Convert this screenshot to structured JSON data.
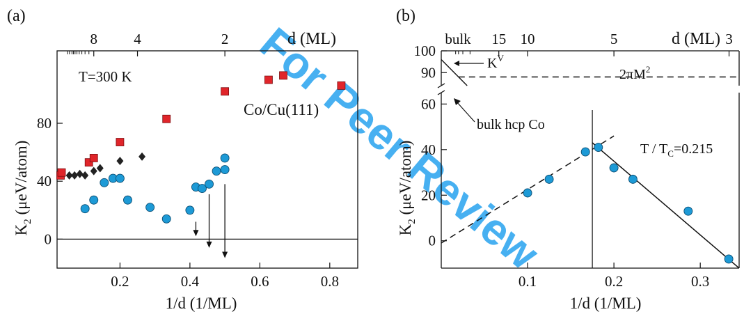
{
  "watermark": "For Peer Review",
  "chart_data": [
    {
      "type": "scatter",
      "panel_label": "(a)",
      "xlabel": "1/d (1/ML)",
      "ylabel": "K",
      "ylabel_sub": "2",
      "ylabel_unit": " (μeV/atom)",
      "xlim": [
        0.02,
        0.88
      ],
      "ylim": [
        -20,
        130
      ],
      "x_ticks": [
        0.2,
        0.4,
        0.6,
        0.8
      ],
      "x_tick_labels": [
        "0.2",
        "0.4",
        "0.6",
        "0.8"
      ],
      "y_ticks": [
        0,
        40,
        80
      ],
      "y_tick_labels": [
        "0",
        "40",
        "80"
      ],
      "top_axis_label": "d (ML)",
      "top_ticks": [
        {
          "d": 8,
          "label": "8"
        },
        {
          "d": 4,
          "label": "4"
        },
        {
          "d": 2,
          "label": "2"
        }
      ],
      "top_minor_d": [
        9,
        10,
        11,
        12,
        13,
        14,
        15,
        16,
        18,
        20
      ],
      "annotations": [
        "T=300 K",
        "Co/Cu(111)"
      ],
      "zero_line": true,
      "series": [
        {
          "marker": "square",
          "color": "#e0252a",
          "x": [
            0.03,
            0.033,
            0.111,
            0.125,
            0.2,
            0.333,
            0.5,
            0.625,
            0.667,
            0.833
          ],
          "y": [
            44,
            46,
            53,
            56,
            67,
            83,
            102,
            110,
            113,
            106
          ]
        },
        {
          "marker": "diamond",
          "color": "#222222",
          "x": [
            0.055,
            0.07,
            0.085,
            0.1,
            0.125,
            0.143,
            0.2,
            0.263
          ],
          "y": [
            44,
            44,
            45,
            44,
            47,
            49,
            54,
            57
          ]
        },
        {
          "marker": "circle",
          "color": "#1d9ad6",
          "x": [
            0.1,
            0.125,
            0.155,
            0.18,
            0.2,
            0.222,
            0.286,
            0.333,
            0.4,
            0.417,
            0.435,
            0.455,
            0.476,
            0.5,
            0.5
          ],
          "y": [
            21,
            27,
            39,
            42,
            42,
            27,
            22,
            14,
            20,
            36,
            35,
            38,
            47,
            48,
            56
          ]
        }
      ],
      "arrows": [
        {
          "x": 0.417,
          "y_from": 12,
          "y_to": 2
        },
        {
          "x": 0.455,
          "y_from": 31,
          "y_to": -6
        },
        {
          "x": 0.5,
          "y_from": 38,
          "y_to": -13
        }
      ]
    },
    {
      "type": "scatter",
      "panel_label": "(b)",
      "xlabel": "1/d (1/ML)",
      "ylabel": "K",
      "ylabel_sub": "2",
      "ylabel_unit": " (μeV/atom)",
      "xlim": [
        0.0,
        0.345
      ],
      "ylim": [
        -12,
        65
      ],
      "x_ticks": [
        0.1,
        0.2,
        0.3
      ],
      "x_tick_labels": [
        "0.1",
        "0.2",
        "0.3"
      ],
      "y_ticks": [
        0,
        20,
        40,
        60
      ],
      "y_tick_labels": [
        "0",
        "20",
        "40",
        "60"
      ],
      "upper_y_ticks": [
        90,
        100
      ],
      "upper_y_tick_labels": [
        "90",
        "100"
      ],
      "top_axis_label": "d (ML)",
      "top_ticks": [
        {
          "d": "bulk",
          "label": "bulk"
        },
        {
          "d": 15,
          "label": "15"
        },
        {
          "d": 10,
          "label": "10"
        },
        {
          "d": 5,
          "label": "5"
        },
        {
          "d": 3,
          "label": "3"
        }
      ],
      "top_minor_d": [
        30,
        40,
        50,
        60
      ],
      "annotations": [
        "T / T",
        "C",
        "=0.215",
        "2πM",
        "2",
        "K",
        "V",
        "bulk hcp Co"
      ],
      "vertical_line_x": 0.175,
      "circle_points": {
        "color": "#1d9ad6",
        "x": [
          0.1,
          0.125,
          0.167,
          0.182,
          0.2,
          0.222,
          0.286,
          0.333
        ],
        "y": [
          21,
          27,
          39,
          41,
          32,
          27,
          13,
          -8
        ]
      },
      "fit_lines": [
        {
          "style": "dashed",
          "x": [
            0.0,
            0.2
          ],
          "y": [
            -1,
            46
          ]
        },
        {
          "style": "solid",
          "x": [
            0.175,
            0.345
          ],
          "y": [
            43,
            -12
          ]
        }
      ],
      "upper_lines": [
        {
          "style": "dashed",
          "x": [
            0.02,
            0.345
          ],
          "y": [
            88,
            88
          ]
        },
        {
          "style": "solid",
          "x": [
            0.0,
            0.03
          ],
          "y": [
            96,
            84
          ]
        }
      ]
    }
  ]
}
